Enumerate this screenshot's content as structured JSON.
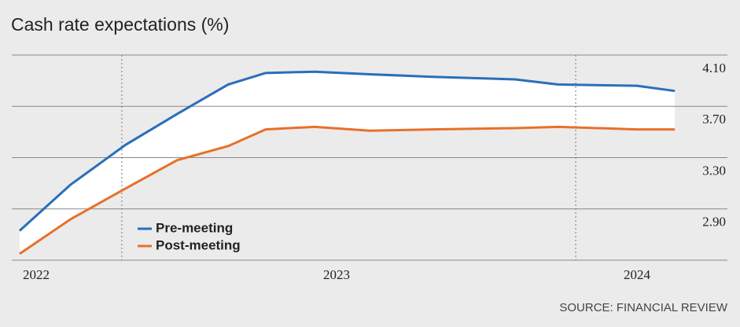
{
  "chart_data": {
    "type": "line",
    "title": "Cash rate expectations (%)",
    "source": "SOURCE: FINANCIAL REVIEW",
    "x": [
      2021.945,
      2022.115,
      2022.298,
      2022.469,
      2022.639,
      2022.764,
      2022.927,
      2023.11,
      2023.319,
      2023.594,
      2023.738,
      2024.0,
      2024.126
    ],
    "series": [
      {
        "name": "Pre-meeting",
        "color": "#2a6ebb",
        "values": [
          2.73,
          3.09,
          3.4,
          3.64,
          3.87,
          3.96,
          3.97,
          3.95,
          3.93,
          3.91,
          3.87,
          3.86,
          3.82
        ]
      },
      {
        "name": "Post-meeting",
        "color": "#e8702a",
        "values": [
          2.55,
          2.82,
          3.06,
          3.28,
          3.39,
          3.52,
          3.54,
          3.51,
          3.52,
          3.53,
          3.54,
          3.52,
          3.52
        ]
      }
    ],
    "xlim": [
      2021.9,
      2024.35
    ],
    "xticks": [
      2022,
      2023,
      2024
    ],
    "ylim": [
      2.5,
      4.1
    ],
    "yticks": [
      {
        "value": 4.1,
        "label": "4.10"
      },
      {
        "value": 3.7,
        "label": "3.70"
      },
      {
        "value": 3.3,
        "label": "3.30"
      },
      {
        "value": 2.9,
        "label": "2.90"
      }
    ],
    "grid": true,
    "x_markers": [
      2022.285,
      2023.796
    ],
    "legend": "lower left"
  }
}
